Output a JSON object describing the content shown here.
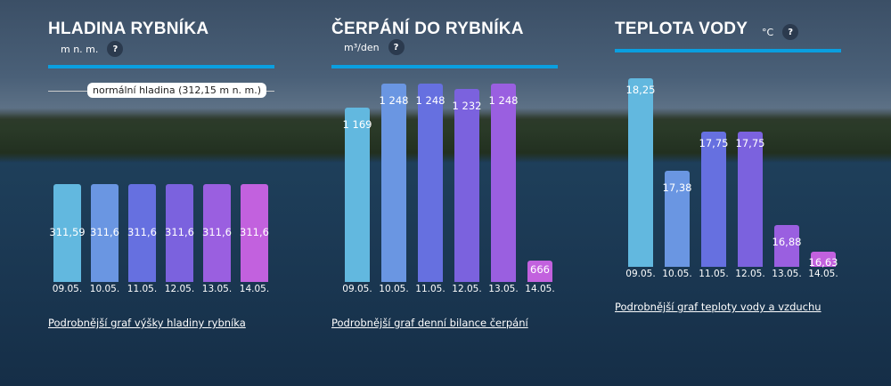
{
  "days": [
    "09.05.",
    "10.05.",
    "11.05.",
    "12.05.",
    "13.05.",
    "14.05."
  ],
  "bar_colors": [
    "#62b8df",
    "#6a96e2",
    "#6670e0",
    "#7b62de",
    "#9a5fe0",
    "#c261de"
  ],
  "panels": [
    {
      "title": "HLADINA RYBNÍKA",
      "unit": "m n. m.",
      "help": "?",
      "normal_label": "normální hladina (312,15 m n. m.)",
      "values": [
        311.59,
        311.6,
        311.6,
        311.6,
        311.6,
        311.6
      ],
      "labels": [
        "311,59",
        "311,6",
        "311,6",
        "311,6",
        "311,6",
        "311,6"
      ],
      "link": "Podrobnější graf výšky hladiny rybníka"
    },
    {
      "title": "ČERPÁNÍ DO RYBNÍKA",
      "unit": "m³/den",
      "help": "?",
      "values": [
        1169,
        1248,
        1248,
        1232,
        1248,
        666
      ],
      "labels": [
        "1 169",
        "1 248",
        "1 248",
        "1 232",
        "1 248",
        "666"
      ],
      "link": "Podrobnější graf denní bilance čerpání"
    },
    {
      "title": "TEPLOTA VODY",
      "unit": "°C",
      "help": "?",
      "values": [
        18.25,
        17.38,
        17.75,
        17.75,
        16.88,
        16.63
      ],
      "labels": [
        "18,25",
        "17,38",
        "17,75",
        "17,75",
        "16,88",
        "16,63"
      ],
      "link": "Podrobnější graf teploty vody a vzduchu"
    }
  ]
}
